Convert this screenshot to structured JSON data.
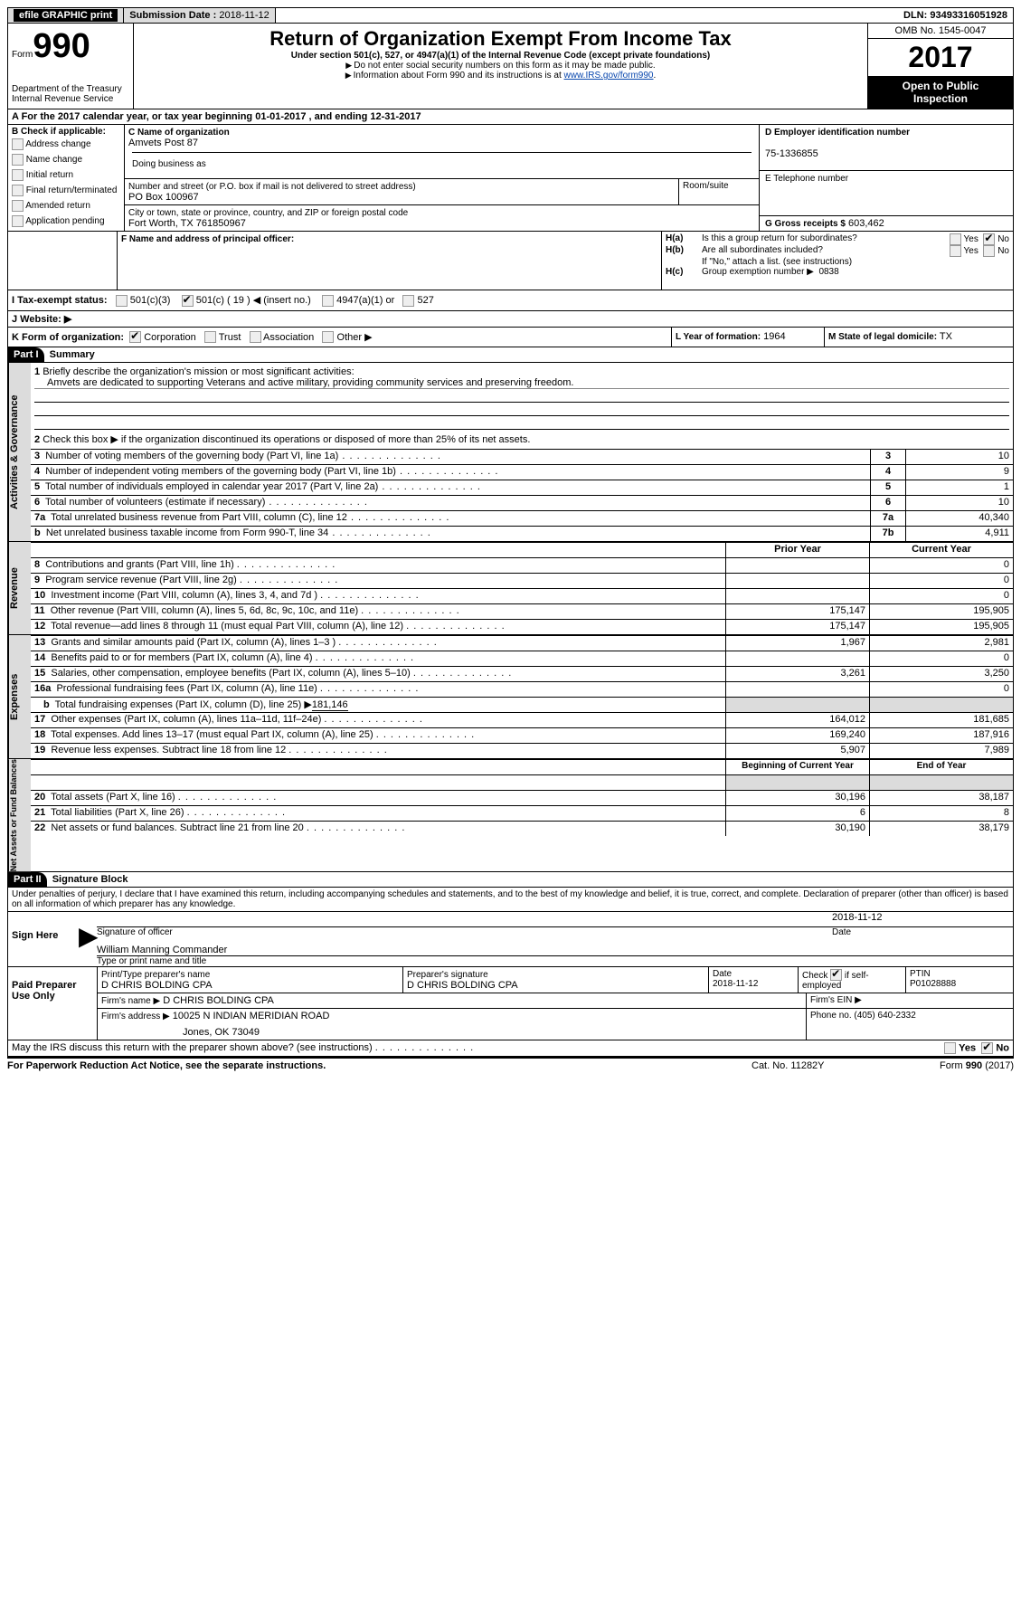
{
  "topbar": {
    "efile": "efile GRAPHIC print",
    "submission_label": "Submission Date :",
    "submission_date": "2018-11-12",
    "dln_label": "DLN:",
    "dln": "93493316051928"
  },
  "header": {
    "form_prefix": "Form",
    "form_number": "990",
    "dept": "Department of the Treasury",
    "irs": "Internal Revenue Service",
    "title": "Return of Organization Exempt From Income Tax",
    "subtitle": "Under section 501(c), 527, or 4947(a)(1) of the Internal Revenue Code (except private foundations)",
    "ssn_note": "Do not enter social security numbers on this form as it may be made public.",
    "info_note_pre": "Information about Form 990 and its instructions is at ",
    "info_link": "www.IRS.gov/form990",
    "omb_label": "OMB No. 1545-0047",
    "year": "2017",
    "public1": "Open to Public",
    "public2": "Inspection"
  },
  "section_a": {
    "text_pre": "A  For the 2017 calendar year, or tax year beginning ",
    "begin": "01-01-2017",
    "mid": "  , and ending ",
    "end": "12-31-2017"
  },
  "section_b": {
    "label": "B Check if applicable:",
    "opts": [
      "Address change",
      "Name change",
      "Initial return",
      "Final return/terminated",
      "Amended return",
      "Application pending"
    ]
  },
  "section_c": {
    "name_label": "C Name of organization",
    "name": "Amvets Post 87",
    "dba_label": "Doing business as",
    "street_label": "Number and street (or P.O. box if mail is not delivered to street address)",
    "room_label": "Room/suite",
    "street": "PO Box 100967",
    "city_label": "City or town, state or province, country, and ZIP or foreign postal code",
    "city": "Fort Worth, TX  761850967"
  },
  "section_d": {
    "label": "D Employer identification number",
    "value": "75-1336855"
  },
  "section_e": {
    "label": "E Telephone number",
    "value": ""
  },
  "section_g": {
    "label": "G Gross receipts $",
    "value": "603,462"
  },
  "section_f": {
    "label": "F Name and address of principal officer:"
  },
  "section_h": {
    "ha": "Is this a group return for subordinates?",
    "hb": "Are all subordinates included?",
    "hb_note": "If \"No,\" attach a list. (see instructions)",
    "hc": "Group exemption number ▶",
    "hc_val": "0838",
    "yes": "Yes",
    "no": "No"
  },
  "section_i": {
    "label": "I  Tax-exempt status:",
    "o1": "501(c)(3)",
    "o2": "501(c) (",
    "o2v": "19",
    "o2s": ") ◀ (insert no.)",
    "o3": "4947(a)(1) or",
    "o4": "527"
  },
  "section_j": {
    "label": "J  Website: ▶"
  },
  "section_k": {
    "label": "K Form of organization:",
    "opts": [
      "Corporation",
      "Trust",
      "Association",
      "Other ▶"
    ]
  },
  "section_l": {
    "label": "L Year of formation:",
    "value": "1964"
  },
  "section_m": {
    "label": "M State of legal domicile:",
    "value": "TX"
  },
  "part1": {
    "header": "Part I",
    "title": "Summary",
    "l1_label": "Briefly describe the organization's mission or most significant activities:",
    "l1_text": "Amvets are dedicated to supporting Veterans and active military, providing community services and preserving freedom.",
    "l2": "Check this box ▶       if the organization discontinued its operations or disposed of more than 25% of its net assets.",
    "rows_ag": [
      {
        "n": "3",
        "t": "Number of voting members of the governing body (Part VI, line 1a)",
        "k": "3",
        "v": "10"
      },
      {
        "n": "4",
        "t": "Number of independent voting members of the governing body (Part VI, line 1b)",
        "k": "4",
        "v": "9"
      },
      {
        "n": "5",
        "t": "Total number of individuals employed in calendar year 2017 (Part V, line 2a)",
        "k": "5",
        "v": "1"
      },
      {
        "n": "6",
        "t": "Total number of volunteers (estimate if necessary)",
        "k": "6",
        "v": "10"
      },
      {
        "n": "7a",
        "t": "Total unrelated business revenue from Part VIII, column (C), line 12",
        "k": "7a",
        "v": "40,340"
      },
      {
        "n": "b",
        "t": "Net unrelated business taxable income from Form 990-T, line 34",
        "k": "7b",
        "v": "4,911"
      }
    ],
    "col_prior": "Prior Year",
    "col_current": "Current Year",
    "rev_rows": [
      {
        "n": "8",
        "t": "Contributions and grants (Part VIII, line 1h)",
        "p": "",
        "c": "0"
      },
      {
        "n": "9",
        "t": "Program service revenue (Part VIII, line 2g)",
        "p": "",
        "c": "0"
      },
      {
        "n": "10",
        "t": "Investment income (Part VIII, column (A), lines 3, 4, and 7d )",
        "p": "",
        "c": "0"
      },
      {
        "n": "11",
        "t": "Other revenue (Part VIII, column (A), lines 5, 6d, 8c, 9c, 10c, and 11e)",
        "p": "175,147",
        "c": "195,905"
      },
      {
        "n": "12",
        "t": "Total revenue—add lines 8 through 11 (must equal Part VIII, column (A), line 12)",
        "p": "175,147",
        "c": "195,905"
      }
    ],
    "exp_rows": [
      {
        "n": "13",
        "t": "Grants and similar amounts paid (Part IX, column (A), lines 1–3 )",
        "p": "1,967",
        "c": "2,981"
      },
      {
        "n": "14",
        "t": "Benefits paid to or for members (Part IX, column (A), line 4)",
        "p": "",
        "c": "0"
      },
      {
        "n": "15",
        "t": "Salaries, other compensation, employee benefits (Part IX, column (A), lines 5–10)",
        "p": "3,261",
        "c": "3,250"
      },
      {
        "n": "16a",
        "t": "Professional fundraising fees (Part IX, column (A), line 11e)",
        "p": "",
        "c": "0"
      }
    ],
    "l16b_t": "Total fundraising expenses (Part IX, column (D), line 25) ▶",
    "l16b_v": "181,146",
    "exp_rows2": [
      {
        "n": "17",
        "t": "Other expenses (Part IX, column (A), lines 11a–11d, 11f–24e)",
        "p": "164,012",
        "c": "181,685"
      },
      {
        "n": "18",
        "t": "Total expenses. Add lines 13–17 (must equal Part IX, column (A), line 25)",
        "p": "169,240",
        "c": "187,916"
      },
      {
        "n": "19",
        "t": "Revenue less expenses. Subtract line 18 from line 12",
        "p": "5,907",
        "c": "7,989"
      }
    ],
    "col_begin": "Beginning of Current Year",
    "col_end": "End of Year",
    "na_rows": [
      {
        "n": "20",
        "t": "Total assets (Part X, line 16)",
        "p": "30,196",
        "c": "38,187"
      },
      {
        "n": "21",
        "t": "Total liabilities (Part X, line 26)",
        "p": "6",
        "c": "8"
      },
      {
        "n": "22",
        "t": "Net assets or fund balances. Subtract line 21 from line 20",
        "p": "30,190",
        "c": "38,179"
      }
    ],
    "side_ag": "Activities & Governance",
    "side_rev": "Revenue",
    "side_exp": "Expenses",
    "side_na": "Net Assets or Fund Balances"
  },
  "part2": {
    "header": "Part II",
    "title": "Signature Block",
    "perjury": "Under penalties of perjury, I declare that I have examined this return, including accompanying schedules and statements, and to the best of my knowledge and belief, it is true, correct, and complete. Declaration of preparer (other than officer) is based on all information of which preparer has any knowledge.",
    "sign_here": "Sign Here",
    "sig_officer": "Signature of officer",
    "sig_date_v": "2018-11-12",
    "sig_date": "Date",
    "officer_name": "William Manning Commander",
    "officer_label": "Type or print name and title",
    "paid_prep": "Paid Preparer Use Only",
    "pt_name_l": "Print/Type preparer's name",
    "pt_name": "D CHRIS BOLDING CPA",
    "pt_sig_l": "Preparer's signature",
    "pt_sig": "D CHRIS BOLDING CPA",
    "pt_date_l": "Date",
    "pt_date": "2018-11-12",
    "pt_self_l": "Check       if self-employed",
    "ptin_l": "PTIN",
    "ptin": "P01028888",
    "firm_name_l": "Firm's name   ▶",
    "firm_name": "D CHRIS BOLDING CPA",
    "firm_ein_l": "Firm's EIN ▶",
    "firm_addr_l": "Firm's address ▶",
    "firm_addr1": "10025 N INDIAN MERIDIAN ROAD",
    "firm_addr2": "Jones, OK  73049",
    "phone_l": "Phone no.",
    "phone": "(405) 640-2332",
    "discuss": "May the IRS discuss this return with the preparer shown above? (see instructions)",
    "yes": "Yes",
    "no": "No"
  },
  "footer": {
    "pra": "For Paperwork Reduction Act Notice, see the separate instructions.",
    "cat": "Cat. No. 11282Y",
    "form": "Form 990 (2017)"
  }
}
